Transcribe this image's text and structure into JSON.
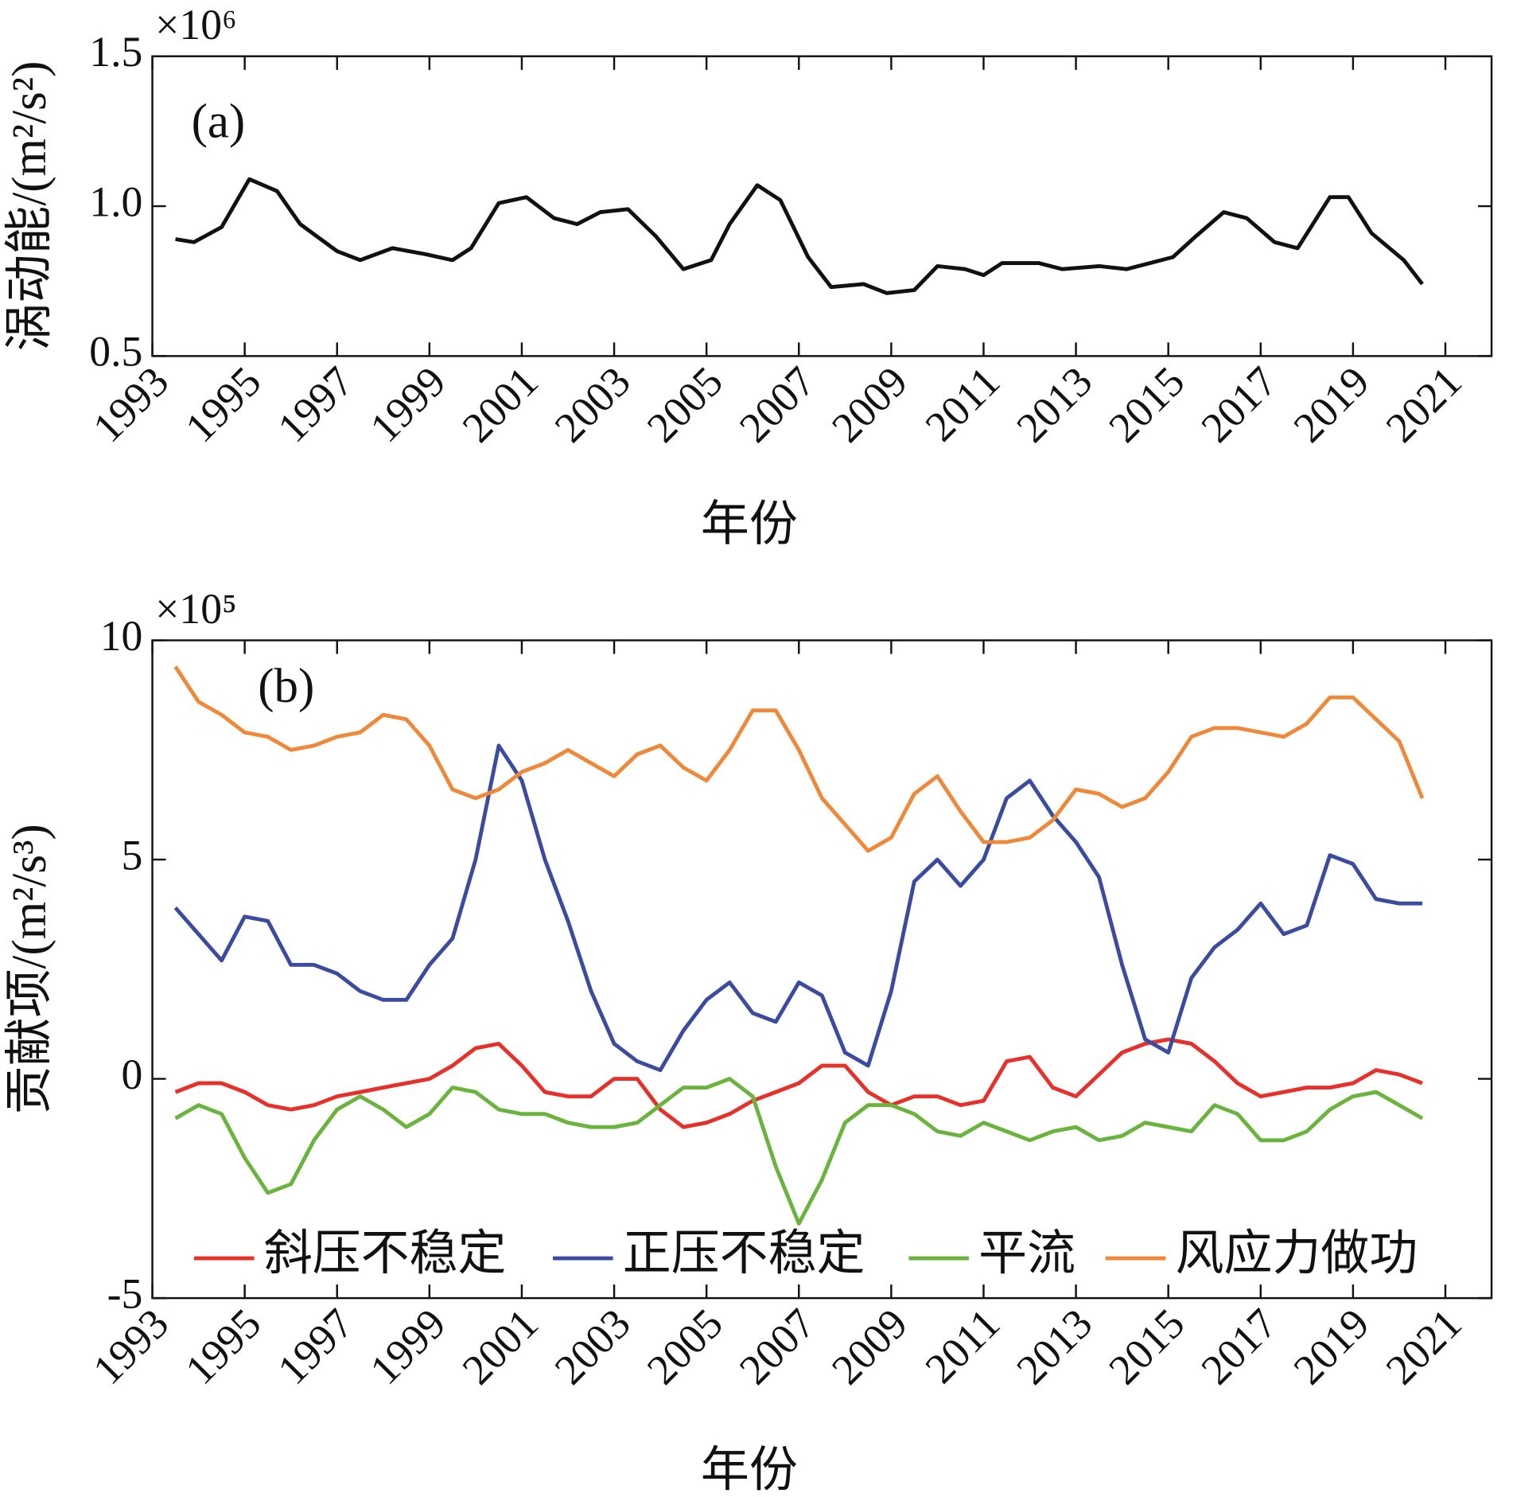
{
  "chart_data": [
    {
      "type": "line",
      "annotation": "(a)",
      "y_scale": "×10⁶",
      "ylabel": "涡动能/(m²/s²)",
      "xlabel": "年份",
      "xlim": [
        1993,
        2022
      ],
      "xticks": [
        1993,
        1995,
        1997,
        1999,
        2001,
        2003,
        2005,
        2007,
        2009,
        2011,
        2013,
        2015,
        2017,
        2019,
        2021
      ],
      "ylim": [
        0.5,
        1.5
      ],
      "yticks": [
        0.5,
        {
          "value": 1,
          "label": "1.0"
        },
        1.5
      ],
      "x": [
        1993.5,
        1993.9,
        1994.5,
        1995.1,
        1995.7,
        1996.2,
        1997.0,
        1997.5,
        1998.2,
        1998.9,
        1999.5,
        1999.9,
        2000.5,
        2001.1,
        2001.7,
        2002.2,
        2002.7,
        2003.3,
        2003.9,
        2004.5,
        2005.1,
        2005.5,
        2006.1,
        2006.6,
        2007.2,
        2007.7,
        2008.4,
        2008.9,
        2009.5,
        2010.0,
        2010.6,
        2011.0,
        2011.4,
        2012.2,
        2012.7,
        2013.5,
        2014.1,
        2014.6,
        2015.1,
        2015.6,
        2016.2,
        2016.7,
        2017.3,
        2017.8,
        2018.5,
        2018.9,
        2019.4,
        2020.1,
        2020.5
      ],
      "series": [
        {
          "color": "#111111",
          "values": [
            0.89,
            0.88,
            0.93,
            1.09,
            1.05,
            0.94,
            0.85,
            0.82,
            0.86,
            0.84,
            0.82,
            0.86,
            1.01,
            1.03,
            0.96,
            0.94,
            0.98,
            0.99,
            0.9,
            0.79,
            0.82,
            0.94,
            1.07,
            1.02,
            0.83,
            0.73,
            0.74,
            0.71,
            0.72,
            0.8,
            0.79,
            0.77,
            0.81,
            0.81,
            0.79,
            0.8,
            0.79,
            0.81,
            0.83,
            0.9,
            0.98,
            0.96,
            0.88,
            0.86,
            1.03,
            1.03,
            0.91,
            0.82,
            0.74
          ]
        }
      ]
    },
    {
      "type": "line",
      "annotation": "(b)",
      "y_scale": "×10⁵",
      "ylabel": "贡献项/(m²/s³)",
      "xlabel": "年份",
      "legend": "lower center",
      "xlim": [
        1993,
        2022
      ],
      "xticks": [
        1993,
        1995,
        1997,
        1999,
        2001,
        2003,
        2005,
        2007,
        2009,
        2011,
        2013,
        2015,
        2017,
        2019,
        2021
      ],
      "ylim": [
        -5,
        10
      ],
      "yticks": [
        -5,
        0,
        5,
        10
      ],
      "x": [
        1993.5,
        1994,
        1994.5,
        1995,
        1995.5,
        1996,
        1996.5,
        1997,
        1997.5,
        1998,
        1998.5,
        1999,
        1999.5,
        2000,
        2000.5,
        2001,
        2001.5,
        2002,
        2002.5,
        2003,
        2003.5,
        2004,
        2004.5,
        2005,
        2005.5,
        2006,
        2006.5,
        2007,
        2007.5,
        2008,
        2008.5,
        2009,
        2009.5,
        2010,
        2010.5,
        2011,
        2011.5,
        2012,
        2012.5,
        2013,
        2013.5,
        2014,
        2014.5,
        2015,
        2015.5,
        2016,
        2016.5,
        2017,
        2017.5,
        2018,
        2018.5,
        2019,
        2019.5,
        2020,
        2020.5
      ],
      "series": [
        {
          "name": "斜压不稳定",
          "color": "#e8302a",
          "values": [
            -0.3,
            -0.1,
            -0.1,
            -0.3,
            -0.6,
            -0.7,
            -0.6,
            -0.4,
            -0.3,
            -0.2,
            -0.1,
            0.0,
            0.3,
            0.7,
            0.8,
            0.3,
            -0.3,
            -0.4,
            -0.4,
            0.0,
            0.0,
            -0.7,
            -1.1,
            -1.0,
            -0.8,
            -0.5,
            -0.3,
            -0.1,
            0.3,
            0.3,
            -0.3,
            -0.6,
            -0.4,
            -0.4,
            -0.6,
            -0.5,
            0.4,
            0.5,
            -0.2,
            -0.4,
            0.1,
            0.6,
            0.8,
            0.9,
            0.8,
            0.4,
            -0.1,
            -0.4,
            -0.3,
            -0.2,
            -0.2,
            -0.1,
            0.2,
            0.1,
            -0.1
          ]
        },
        {
          "name": "正压不稳定",
          "color": "#3a4ba0",
          "values": [
            3.9,
            3.3,
            2.7,
            3.7,
            3.6,
            2.6,
            2.6,
            2.4,
            2.0,
            1.8,
            1.8,
            2.6,
            3.2,
            5.0,
            7.6,
            6.8,
            5.0,
            3.6,
            2.0,
            0.8,
            0.4,
            0.2,
            1.1,
            1.8,
            2.2,
            1.5,
            1.3,
            2.2,
            1.9,
            0.6,
            0.3,
            2.0,
            4.5,
            5.0,
            4.4,
            5.0,
            6.4,
            6.8,
            6.0,
            5.4,
            4.6,
            2.6,
            0.9,
            0.6,
            2.3,
            3.0,
            3.4,
            4.0,
            3.3,
            3.5,
            5.1,
            4.9,
            4.1,
            4.0,
            4.0
          ]
        },
        {
          "name": "平流",
          "color": "#6ab43e",
          "values": [
            -0.9,
            -0.6,
            -0.8,
            -1.8,
            -2.6,
            -2.4,
            -1.4,
            -0.7,
            -0.4,
            -0.7,
            -1.1,
            -0.8,
            -0.2,
            -0.3,
            -0.7,
            -0.8,
            -0.8,
            -1.0,
            -1.1,
            -1.1,
            -1.0,
            -0.6,
            -0.2,
            -0.2,
            0.0,
            -0.4,
            -2.0,
            -3.3,
            -2.3,
            -1.0,
            -0.6,
            -0.6,
            -0.8,
            -1.2,
            -1.3,
            -1.0,
            -1.2,
            -1.4,
            -1.2,
            -1.1,
            -1.4,
            -1.3,
            -1.0,
            -1.1,
            -1.2,
            -0.6,
            -0.8,
            -1.4,
            -1.4,
            -1.2,
            -0.7,
            -0.4,
            -0.3,
            -0.6,
            -0.9
          ]
        },
        {
          "name": "风应力做功",
          "color": "#f0883a",
          "values": [
            9.4,
            8.6,
            8.3,
            7.9,
            7.8,
            7.5,
            7.6,
            7.8,
            7.9,
            8.3,
            8.2,
            7.6,
            6.6,
            6.4,
            6.6,
            7.0,
            7.2,
            7.5,
            7.2,
            6.9,
            7.4,
            7.6,
            7.1,
            6.8,
            7.5,
            8.4,
            8.4,
            7.5,
            6.4,
            5.8,
            5.2,
            5.5,
            6.5,
            6.9,
            6.1,
            5.4,
            5.4,
            5.5,
            5.9,
            6.6,
            6.5,
            6.2,
            6.4,
            7.0,
            7.8,
            8.0,
            8.0,
            7.9,
            7.8,
            8.1,
            8.7,
            8.7,
            8.2,
            7.7,
            6.4
          ]
        }
      ]
    }
  ]
}
